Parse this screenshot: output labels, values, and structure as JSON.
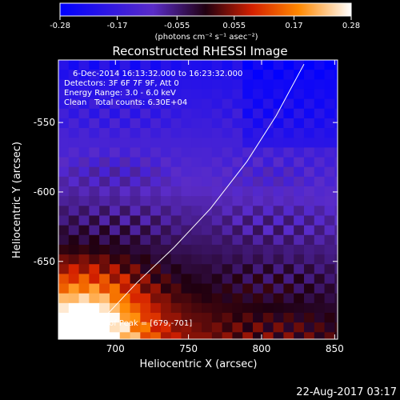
{
  "colorbar": {
    "ticks": [
      "-0.28",
      "-0.17",
      "-0.055",
      "0.055",
      "0.17",
      "0.28"
    ],
    "unit_label": "(photons cm⁻² s⁻¹ asec⁻²)",
    "range": [
      -0.28,
      0.28
    ]
  },
  "chart_data": {
    "type": "heatmap",
    "title": "Reconstructed RHESSI Image",
    "xlabel": "Heliocentric X (arcsec)",
    "ylabel": "Heliocentric Y (arcsec)",
    "xlim": [
      661,
      852
    ],
    "ylim": [
      -706,
      -505
    ],
    "x_ticks": [
      "700",
      "750",
      "800",
      "850"
    ],
    "y_ticks": [
      "-550",
      "-600",
      "-650"
    ],
    "annotations": [
      "6-Dec-2014 16:13:32.000 to 16:23:32.000",
      "Detectors: 3F 6F 7F 9F, Att 0",
      "Energy Range: 3.0 - 6.0 keV",
      "Clean",
      "Total counts: 6.30E+04"
    ],
    "peak_label": "Position of Peak = [679,-701]",
    "peak": [
      679,
      -701
    ],
    "limb_points": [
      [
        829,
        -508
      ],
      [
        810,
        -545
      ],
      [
        790,
        -578
      ],
      [
        765,
        -612
      ],
      [
        740,
        -640
      ],
      [
        715,
        -665
      ],
      [
        690,
        -693
      ],
      [
        682,
        -701
      ]
    ]
  },
  "footer": {
    "timestamp": "22-Aug-2017 03:17"
  }
}
